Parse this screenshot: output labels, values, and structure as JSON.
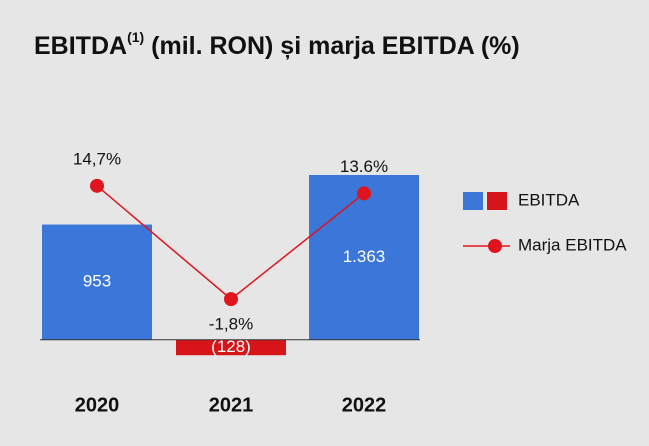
{
  "chart_data": {
    "type": "bar_line",
    "title": "EBITDA",
    "title_superscript": "(1)",
    "title_rest": " (mil. RON) și marja EBITDA (%)",
    "categories": [
      "2020",
      "2021",
      "2022"
    ],
    "series": [
      {
        "name": "EBITDA",
        "type": "bar",
        "colors": [
          "#3b76d9",
          "#d8141b",
          "#3b76d9"
        ],
        "values": [
          953,
          -128,
          1363
        ],
        "value_labels": [
          "953",
          "(128)",
          "1.363"
        ]
      },
      {
        "name": "Marja EBITDA",
        "type": "line",
        "axis": "y2",
        "color": "#e0141c",
        "values": [
          14.7,
          -1.8,
          13.6
        ],
        "value_labels": [
          "14,7%",
          "-1,8%",
          "13.6%"
        ]
      }
    ],
    "ylim": [
      -300,
      2000
    ],
    "y2lim": [
      -13,
      27.5
    ],
    "legend": "right"
  }
}
